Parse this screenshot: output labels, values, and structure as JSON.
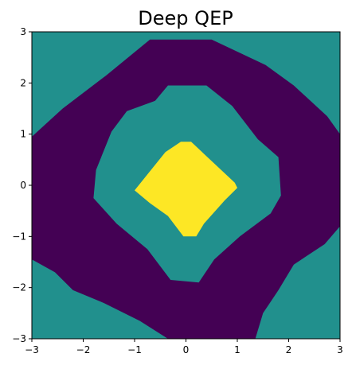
{
  "chart_data": {
    "type": "heatmap",
    "subtype": "filled-contour",
    "title": "Deep QEP",
    "xlabel": "",
    "ylabel": "",
    "xlim": [
      -3,
      3
    ],
    "ylim": [
      -3,
      3
    ],
    "x_ticks": [
      -3,
      -2,
      -1,
      0,
      1,
      2,
      3
    ],
    "y_ticks": [
      -3,
      -2,
      -1,
      0,
      1,
      2,
      3
    ],
    "x_tick_labels": [
      "−3",
      "−2",
      "−1",
      "0",
      "1",
      "2",
      "3"
    ],
    "y_tick_labels": [
      "−3",
      "−2",
      "−1",
      "0",
      "1",
      "2",
      "3"
    ],
    "grid": false,
    "legend": "none",
    "colormap": "viridis",
    "levels": [
      {
        "name": "low",
        "color": "#440154"
      },
      {
        "name": "mid",
        "color": "#21908d"
      },
      {
        "name": "high",
        "color": "#fde725"
      }
    ],
    "regions": [
      {
        "level": "mid",
        "shape": "background",
        "points": [
          [
            -3,
            -3
          ],
          [
            3,
            -3
          ],
          [
            3,
            3
          ],
          [
            -3,
            3
          ]
        ]
      },
      {
        "level": "low",
        "shape": "outer-ring",
        "points": [
          [
            -3,
            0.95
          ],
          [
            -2.4,
            1.5
          ],
          [
            -1.55,
            2.15
          ],
          [
            -0.7,
            2.85
          ],
          [
            0.5,
            2.85
          ],
          [
            1.55,
            2.35
          ],
          [
            2.1,
            1.95
          ],
          [
            2.75,
            1.35
          ],
          [
            3,
            1.0
          ],
          [
            3,
            -0.8
          ],
          [
            2.7,
            -1.15
          ],
          [
            2.1,
            -1.55
          ],
          [
            1.8,
            -2.05
          ],
          [
            1.5,
            -2.5
          ],
          [
            1.35,
            -3
          ],
          [
            -0.35,
            -3
          ],
          [
            -0.9,
            -2.65
          ],
          [
            -1.6,
            -2.3
          ],
          [
            -2.2,
            -2.05
          ],
          [
            -2.55,
            -1.7
          ],
          [
            -3,
            -1.45
          ]
        ]
      },
      {
        "level": "mid",
        "shape": "inner-region",
        "points": [
          [
            -1.75,
            0.3
          ],
          [
            -1.45,
            1.05
          ],
          [
            -1.15,
            1.45
          ],
          [
            -0.6,
            1.65
          ],
          [
            -0.35,
            1.95
          ],
          [
            0.4,
            1.95
          ],
          [
            0.9,
            1.55
          ],
          [
            1.4,
            0.9
          ],
          [
            1.8,
            0.55
          ],
          [
            1.85,
            -0.2
          ],
          [
            1.65,
            -0.55
          ],
          [
            1.05,
            -1.0
          ],
          [
            0.55,
            -1.45
          ],
          [
            0.25,
            -1.9
          ],
          [
            -0.3,
            -1.85
          ],
          [
            -0.75,
            -1.25
          ],
          [
            -1.35,
            -0.75
          ],
          [
            -1.8,
            -0.25
          ]
        ]
      },
      {
        "level": "high",
        "shape": "center-peak",
        "points": [
          [
            -1.0,
            -0.1
          ],
          [
            -0.4,
            0.65
          ],
          [
            -0.1,
            0.85
          ],
          [
            0.1,
            0.85
          ],
          [
            0.95,
            0.05
          ],
          [
            1.0,
            -0.05
          ],
          [
            0.75,
            -0.3
          ],
          [
            0.35,
            -0.75
          ],
          [
            0.2,
            -1.0
          ],
          [
            -0.05,
            -1.0
          ],
          [
            -0.35,
            -0.6
          ],
          [
            -0.7,
            -0.35
          ]
        ]
      }
    ]
  }
}
